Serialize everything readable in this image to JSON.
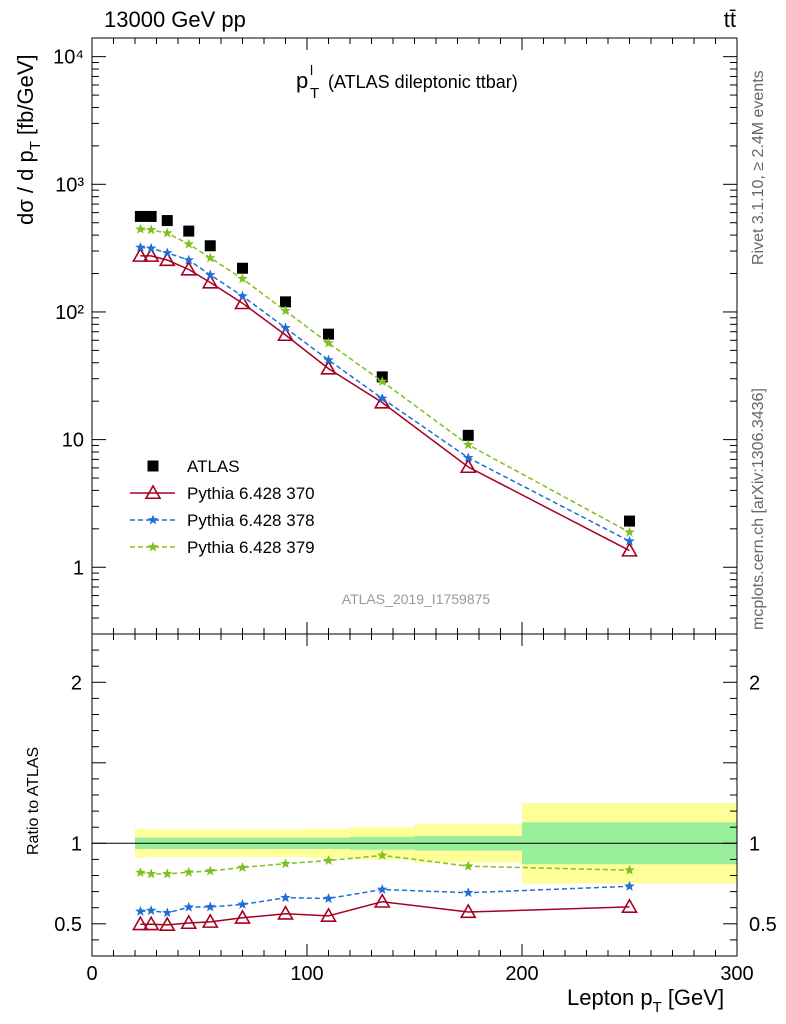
{
  "header": {
    "energy_label": "13000 GeV pp",
    "process_label": "tt̄",
    "plot_title_main": "p",
    "plot_title_sup": "l",
    "plot_title_sub": "T",
    "plot_title_rest": "(ATLAS dileptonic ttbar)",
    "analysis_id": "ATLAS_2019_I1759875"
  },
  "side_labels": {
    "rivet": "Rivet 3.1.10, ≥ 2.4M events",
    "mcplots": "mcplots.cern.ch [arXiv:1306.3436]"
  },
  "axes": {
    "main_ylabel": "dσ / d p",
    "main_ylabel_sub": "T",
    "main_ylabel_unit": "[fb/GeV]",
    "ratio_ylabel": "Ratio to ATLAS",
    "xlabel_main": "Lepton p",
    "xlabel_sub": "T",
    "xlabel_unit": "[GeV]"
  },
  "chart_data": [
    {
      "type": "scatter",
      "panel": "main",
      "x_range": [
        0,
        300
      ],
      "y_range": [
        0.3,
        14000
      ],
      "y_scale": "log",
      "x_ticks": [
        0,
        100,
        200,
        300
      ],
      "y_tick_labels": [
        "10⁴",
        "10³",
        "10²",
        "10",
        "1"
      ],
      "legend_position": "bottom-left",
      "x": [
        22.5,
        27.5,
        35,
        45,
        55,
        70,
        90,
        110,
        135,
        175,
        250
      ],
      "series": [
        {
          "name": "ATLAS",
          "color": "#000000",
          "marker": "square",
          "style": "points",
          "values": [
            560,
            560,
            520,
            430,
            330,
            220,
            120,
            67,
            31,
            10.8,
            2.3
          ]
        },
        {
          "name": "Pythia 6.428 370",
          "color": "#a50021",
          "marker": "open-triangle",
          "style": "solid",
          "values": [
            275,
            275,
            255,
            215,
            170,
            117,
            66,
            36,
            19.5,
            6.1,
            1.35
          ]
        },
        {
          "name": "Pythia 6.428 378",
          "color": "#1e6fd6",
          "marker": "star",
          "style": "dashed",
          "values": [
            320,
            315,
            290,
            255,
            195,
            133,
            75,
            42,
            21,
            7.2,
            1.6
          ]
        },
        {
          "name": "Pythia 6.428 379",
          "color": "#7fbf1f",
          "marker": "star",
          "style": "dashed",
          "values": [
            445,
            440,
            415,
            340,
            265,
            182,
            102,
            57,
            28.5,
            9.1,
            1.88
          ]
        }
      ]
    },
    {
      "type": "scatter",
      "panel": "ratio",
      "x_range": [
        0,
        300
      ],
      "y_range": [
        0.3,
        2.3
      ],
      "x_ticks": [
        0,
        100,
        200,
        300
      ],
      "y_tick_labels": [
        "0.5",
        "1",
        "2"
      ],
      "reference_band": {
        "bins": [
          [
            20,
            25
          ],
          [
            25,
            30
          ],
          [
            30,
            40
          ],
          [
            40,
            50
          ],
          [
            50,
            60
          ],
          [
            60,
            80
          ],
          [
            80,
            100
          ],
          [
            100,
            120
          ],
          [
            120,
            150
          ],
          [
            150,
            200
          ],
          [
            200,
            300
          ]
        ],
        "inner_half_width": [
          0.035,
          0.035,
          0.035,
          0.035,
          0.035,
          0.035,
          0.035,
          0.035,
          0.04,
          0.045,
          0.13
        ],
        "outer_half_width": [
          0.09,
          0.085,
          0.085,
          0.085,
          0.085,
          0.085,
          0.085,
          0.09,
          0.1,
          0.12,
          0.25
        ],
        "inner_color": "#99ee99",
        "outer_color": "#ffff99"
      },
      "x": [
        22.5,
        27.5,
        35,
        45,
        55,
        70,
        90,
        110,
        135,
        175,
        250
      ],
      "series": [
        {
          "name": "Pythia 6.428 370",
          "color": "#a50021",
          "marker": "open-triangle",
          "style": "solid",
          "values": [
            0.497,
            0.497,
            0.493,
            0.505,
            0.512,
            0.537,
            0.563,
            0.549,
            0.637,
            0.573,
            0.605
          ]
        },
        {
          "name": "Pythia 6.428 378",
          "color": "#1e6fd6",
          "marker": "star",
          "style": "dashed",
          "values": [
            0.577,
            0.582,
            0.568,
            0.603,
            0.605,
            0.62,
            0.662,
            0.657,
            0.713,
            0.693,
            0.733
          ]
        },
        {
          "name": "Pythia 6.428 379",
          "color": "#7fbf1f",
          "marker": "star",
          "style": "dashed",
          "values": [
            0.818,
            0.81,
            0.81,
            0.82,
            0.828,
            0.85,
            0.873,
            0.893,
            0.925,
            0.858,
            0.833
          ]
        }
      ]
    }
  ]
}
